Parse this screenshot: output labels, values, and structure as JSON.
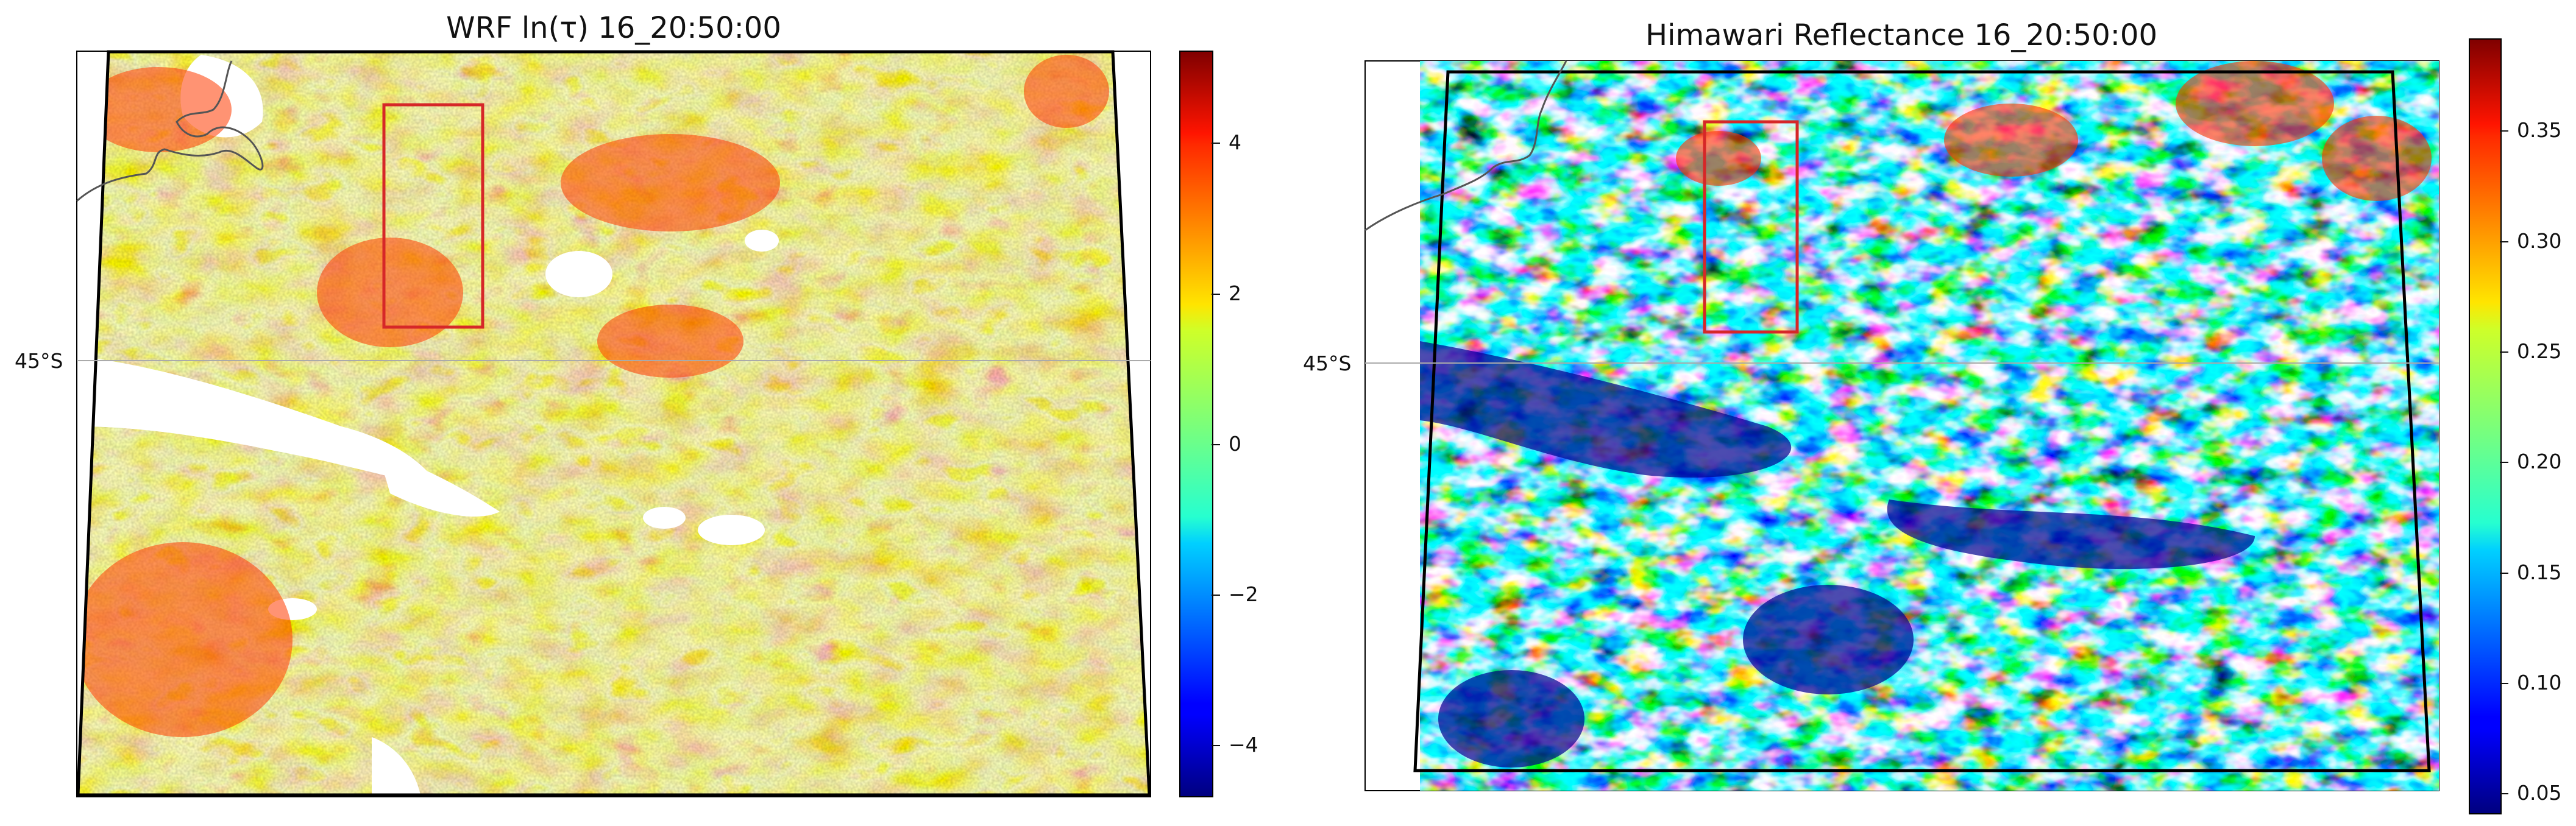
{
  "panels": [
    {
      "title": "WRF ln(τ) 16_20:50:00",
      "lat_label": "45°S",
      "colormap": "jet",
      "colorbar": {
        "min": -5,
        "max": 5,
        "ticks": [
          "4",
          "2",
          "0",
          "−2",
          "−4"
        ]
      },
      "bad_color": "#ffffff"
    },
    {
      "title": "Himawari Reflectance 16_20:50:00",
      "lat_label": "45°S",
      "colormap": "jet",
      "colorbar": {
        "min": 0.04,
        "max": 0.39,
        "ticks": [
          "0.35",
          "0.30",
          "0.25",
          "0.20",
          "0.15",
          "0.10",
          "0.05"
        ]
      }
    }
  ],
  "colors": {
    "box": "#d62728",
    "coast": "#555555",
    "domain": "#000000",
    "gridline": "#aaaaaa"
  }
}
